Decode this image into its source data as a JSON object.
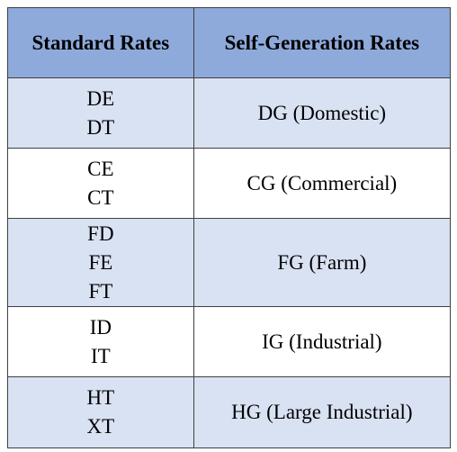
{
  "table": {
    "headers": {
      "standard": "Standard Rates",
      "self_generation": "Self-Generation Rates"
    },
    "rows": [
      {
        "standard": [
          "DE",
          "DT"
        ],
        "self_generation": "DG (Domestic)"
      },
      {
        "standard": [
          "CE",
          "CT"
        ],
        "self_generation": "CG (Commercial)"
      },
      {
        "standard": [
          "FD",
          "FE",
          "FT"
        ],
        "self_generation": "FG (Farm)"
      },
      {
        "standard": [
          "ID",
          "IT"
        ],
        "self_generation": "IG (Industrial)"
      },
      {
        "standard": [
          "HT",
          "XT"
        ],
        "self_generation": "HG (Large Industrial)"
      }
    ]
  },
  "colors": {
    "header_fill": "#8eaadb",
    "band_fill": "#d9e2f3",
    "border": "#3f3f3f"
  }
}
